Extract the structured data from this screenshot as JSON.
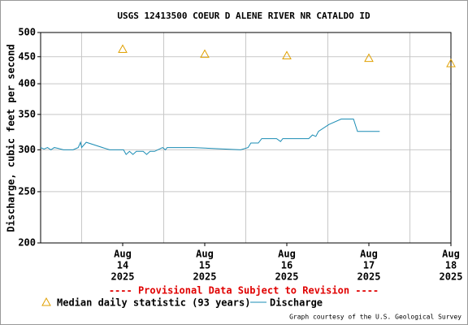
{
  "chart_data": {
    "type": "line",
    "title": "USGS 12413500 COEUR D ALENE RIVER NR CATALDO ID",
    "ylabel": "Discharge, cubic feet per second",
    "annotation": "---- Provisional Data Subject to Revision ----",
    "credit": "Graph courtesy of the U.S. Geological Survey",
    "ylog": true,
    "grid": true,
    "ylim": [
      200,
      500
    ],
    "yticks": [
      200,
      250,
      300,
      350,
      400,
      450,
      500
    ],
    "xlim": [
      "2025-08-13 12:00",
      "2025-08-18 12:00"
    ],
    "xgrid": [
      "2025-08-14 00:00",
      "2025-08-15 00:00",
      "2025-08-16 00:00",
      "2025-08-17 00:00",
      "2025-08-18 00:00"
    ],
    "xticks": [
      {
        "value": "2025-08-14 12:00",
        "label": [
          "Aug",
          "14",
          "2025"
        ]
      },
      {
        "value": "2025-08-15 12:00",
        "label": [
          "Aug",
          "15",
          "2025"
        ]
      },
      {
        "value": "2025-08-16 12:00",
        "label": [
          "Aug",
          "16",
          "2025"
        ]
      },
      {
        "value": "2025-08-17 12:00",
        "label": [
          "Aug",
          "17",
          "2025"
        ]
      },
      {
        "value": "2025-08-18 12:00",
        "label": [
          "Aug",
          "18",
          "2025"
        ]
      }
    ],
    "series": [
      {
        "name": "Median daily statistic (93 years)",
        "color": "#e0a000",
        "marker": "triangle",
        "x": [
          "2025-08-14 12:00",
          "2025-08-15 12:00",
          "2025-08-16 12:00",
          "2025-08-17 12:00",
          "2025-08-18 12:00"
        ],
        "values": [
          465,
          455,
          452,
          447,
          437
        ]
      },
      {
        "name": "Discharge",
        "color": "#1a8cb4",
        "marker": "line",
        "x": [
          "2025-08-13 12:00",
          "2025-08-13 13:00",
          "2025-08-13 14:00",
          "2025-08-13 15:00",
          "2025-08-13 16:00",
          "2025-08-13 17:00",
          "2025-08-13 18:40",
          "2025-08-13 21:30",
          "2025-08-13 23:00",
          "2025-08-13 23:40",
          "2025-08-14 00:00",
          "2025-08-14 01:20",
          "2025-08-14 08:10",
          "2025-08-14 12:15",
          "2025-08-14 13:00",
          "2025-08-14 14:00",
          "2025-08-14 15:00",
          "2025-08-14 16:00",
          "2025-08-14 18:00",
          "2025-08-14 19:00",
          "2025-08-14 20:00",
          "2025-08-14 21:20",
          "2025-08-14 23:40",
          "2025-08-15 00:30",
          "2025-08-15 01:00",
          "2025-08-15 08:40",
          "2025-08-15 22:30",
          "2025-08-16 00:40",
          "2025-08-16 01:30",
          "2025-08-16 03:40",
          "2025-08-16 04:40",
          "2025-08-16 09:00",
          "2025-08-16 10:10",
          "2025-08-16 10:50",
          "2025-08-16 18:25",
          "2025-08-16 19:30",
          "2025-08-16 20:30",
          "2025-08-16 21:15",
          "2025-08-17 00:20",
          "2025-08-17 03:55",
          "2025-08-17 07:30",
          "2025-08-17 08:40",
          "2025-08-17 15:10"
        ],
        "values": [
          303,
          301,
          303,
          300,
          303,
          302,
          300,
          300,
          303,
          310,
          303,
          310,
          300,
          300,
          294,
          298,
          294,
          298,
          298,
          294,
          298,
          298,
          303,
          300,
          303,
          303,
          300,
          303,
          309,
          309,
          315,
          315,
          311,
          315,
          315,
          320,
          318,
          325,
          335,
          343,
          343,
          325,
          325
        ]
      }
    ]
  }
}
